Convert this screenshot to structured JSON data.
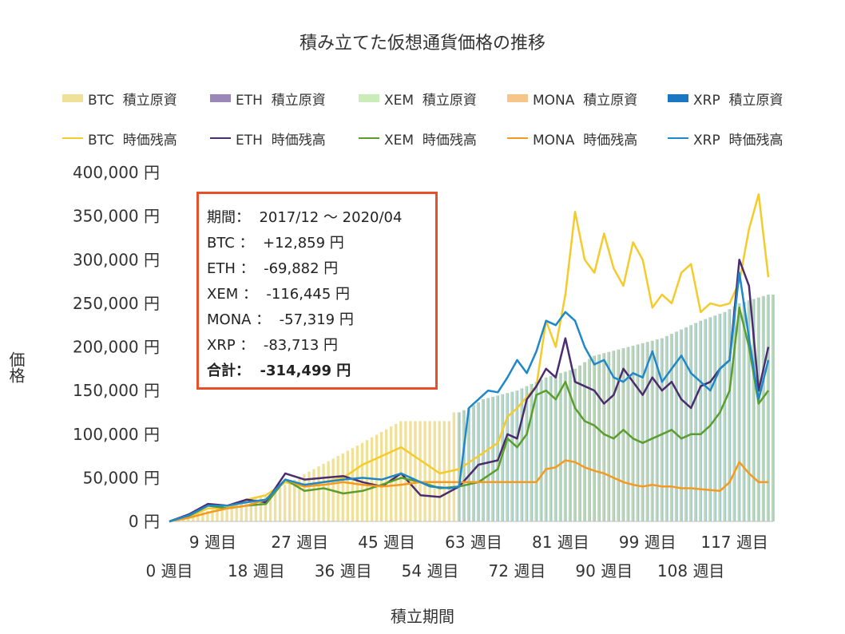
{
  "chart_data": {
    "type": "bar",
    "title": "積み立てた仮想通貨価格の推移",
    "xlabel": "積立期間",
    "ylabel": "価格",
    "ylim": [
      0,
      400000
    ],
    "yticks": [
      0,
      50000,
      100000,
      150000,
      200000,
      250000,
      300000,
      350000,
      400000
    ],
    "ytick_labels": [
      "0 円",
      "50,000 円",
      "100,000 円",
      "150,000 円",
      "200,000 円",
      "250,000 円",
      "300,000 円",
      "350,000 円",
      "400,000 円"
    ],
    "xlim": [
      0,
      125
    ],
    "xticks_upper": [
      9,
      27,
      45,
      63,
      81,
      99,
      117
    ],
    "xticks_upper_labels": [
      "9 週目",
      "27 週目",
      "45 週目",
      "63 週目",
      "81 週目",
      "99 週目",
      "117 週目"
    ],
    "xticks_lower": [
      0,
      18,
      36,
      54,
      72,
      90,
      108
    ],
    "xticks_lower_labels": [
      "0 週目",
      "18 週目",
      "36 週目",
      "54 週目",
      "72 週目",
      "90 週目",
      "108 週目"
    ],
    "grid": false,
    "legend_position": "top",
    "bar_series": [
      {
        "name": "BTC  積立原資",
        "color": "#efe09a",
        "values": [
          [
            0,
            0
          ],
          [
            20,
            30000
          ],
          [
            30,
            60000
          ],
          [
            40,
            90000
          ],
          [
            48,
            115000
          ],
          [
            58,
            115000
          ],
          [
            58,
            125000
          ],
          [
            60,
            125000
          ],
          [
            62,
            130000
          ],
          [
            65,
            140000
          ],
          [
            72,
            150000
          ],
          [
            78,
            165000
          ],
          [
            84,
            175000
          ],
          [
            88,
            190000
          ],
          [
            95,
            200000
          ],
          [
            102,
            210000
          ],
          [
            106,
            220000
          ],
          [
            110,
            230000
          ],
          [
            115,
            240000
          ],
          [
            118,
            250000
          ],
          [
            121,
            255000
          ],
          [
            124,
            260000
          ]
        ]
      },
      {
        "name": "ETH  積立原資",
        "color": "#9b88b8",
        "values": []
      },
      {
        "name": "XEM  積立原資",
        "color": "#c9ecb8",
        "values": []
      },
      {
        "name": "MONA  積立原資",
        "color": "#f5c58a",
        "values": []
      },
      {
        "name": "XRP  積立原資",
        "color": "#1a78c2",
        "values": []
      }
    ],
    "line_series": [
      {
        "name": "BTC  時価残高",
        "color": "#f5cb2c",
        "x": [
          0,
          4,
          8,
          12,
          16,
          20,
          24,
          28,
          32,
          36,
          40,
          44,
          48,
          52,
          56,
          60,
          64,
          68,
          70,
          72,
          76,
          78,
          80,
          82,
          84,
          86,
          88,
          90,
          92,
          94,
          96,
          98,
          100,
          102,
          104,
          106,
          108,
          110,
          112,
          114,
          116,
          118,
          120,
          122,
          124
        ],
        "y": [
          0,
          5000,
          15000,
          15000,
          25000,
          30000,
          45000,
          40000,
          45000,
          50000,
          65000,
          75000,
          85000,
          70000,
          55000,
          60000,
          75000,
          90000,
          120000,
          130000,
          155000,
          230000,
          200000,
          260000,
          355000,
          300000,
          285000,
          330000,
          290000,
          270000,
          320000,
          300000,
          245000,
          260000,
          250000,
          285000,
          295000,
          240000,
          250000,
          247000,
          250000,
          275000,
          335000,
          375000,
          280000
        ]
      },
      {
        "name": "ETH  時価残高",
        "color": "#4b2c6e",
        "x": [
          0,
          4,
          8,
          12,
          16,
          20,
          24,
          28,
          32,
          36,
          40,
          44,
          48,
          52,
          56,
          60,
          64,
          68,
          70,
          72,
          74,
          76,
          78,
          80,
          82,
          84,
          86,
          88,
          90,
          92,
          94,
          96,
          98,
          100,
          102,
          104,
          106,
          108,
          110,
          112,
          114,
          116,
          118,
          120,
          122,
          124
        ],
        "y": [
          0,
          8000,
          20000,
          18000,
          25000,
          22000,
          55000,
          48000,
          50000,
          52000,
          45000,
          40000,
          55000,
          30000,
          28000,
          40000,
          65000,
          70000,
          100000,
          95000,
          140000,
          155000,
          175000,
          165000,
          210000,
          160000,
          155000,
          150000,
          135000,
          145000,
          175000,
          160000,
          145000,
          165000,
          150000,
          160000,
          140000,
          130000,
          155000,
          160000,
          175000,
          185000,
          300000,
          270000,
          150000,
          200000
        ]
      },
      {
        "name": "XEM  時価残高",
        "color": "#5a9e2e",
        "x": [
          0,
          4,
          8,
          12,
          16,
          20,
          24,
          28,
          32,
          36,
          40,
          44,
          48,
          52,
          56,
          60,
          64,
          68,
          70,
          72,
          74,
          76,
          78,
          80,
          82,
          84,
          86,
          88,
          90,
          92,
          94,
          96,
          98,
          100,
          102,
          104,
          106,
          108,
          110,
          112,
          114,
          116,
          118,
          120,
          122,
          124
        ],
        "y": [
          0,
          6000,
          18000,
          15000,
          18000,
          20000,
          48000,
          35000,
          38000,
          32000,
          35000,
          42000,
          50000,
          45000,
          38000,
          40000,
          45000,
          60000,
          95000,
          85000,
          100000,
          145000,
          150000,
          140000,
          160000,
          130000,
          115000,
          110000,
          100000,
          95000,
          105000,
          95000,
          90000,
          95000,
          100000,
          105000,
          95000,
          100000,
          100000,
          110000,
          125000,
          150000,
          245000,
          200000,
          135000,
          150000
        ]
      },
      {
        "name": "MONA  時価残高",
        "color": "#f59a20",
        "x": [
          0,
          4,
          8,
          12,
          16,
          20,
          24,
          28,
          32,
          36,
          40,
          44,
          48,
          52,
          56,
          60,
          64,
          68,
          72,
          76,
          78,
          80,
          82,
          84,
          86,
          88,
          90,
          92,
          94,
          96,
          98,
          100,
          102,
          104,
          106,
          108,
          110,
          112,
          114,
          116,
          118,
          120,
          122,
          124
        ],
        "y": [
          0,
          4000,
          10000,
          15000,
          18000,
          25000,
          48000,
          40000,
          42000,
          45000,
          42000,
          40000,
          42000,
          45000,
          45000,
          45000,
          45000,
          45000,
          45000,
          45000,
          60000,
          62000,
          70000,
          68000,
          62000,
          58000,
          55000,
          50000,
          45000,
          42000,
          40000,
          42000,
          40000,
          40000,
          38000,
          38000,
          37000,
          36000,
          35000,
          45000,
          68000,
          55000,
          45000,
          45000
        ]
      },
      {
        "name": "XRP  時価残高",
        "color": "#1e88c8",
        "x": [
          0,
          4,
          8,
          12,
          16,
          20,
          24,
          28,
          32,
          36,
          40,
          44,
          48,
          52,
          54,
          58,
          60,
          62,
          64,
          66,
          68,
          70,
          72,
          74,
          76,
          78,
          80,
          82,
          84,
          86,
          88,
          90,
          92,
          94,
          96,
          98,
          100,
          102,
          104,
          106,
          108,
          110,
          112,
          114,
          116,
          118,
          120,
          122,
          124
        ],
        "y": [
          0,
          7000,
          18000,
          18000,
          22000,
          25000,
          48000,
          42000,
          45000,
          48000,
          50000,
          48000,
          55000,
          45000,
          40000,
          38000,
          40000,
          130000,
          140000,
          150000,
          148000,
          165000,
          185000,
          170000,
          195000,
          230000,
          225000,
          240000,
          230000,
          200000,
          180000,
          185000,
          165000,
          160000,
          170000,
          165000,
          195000,
          160000,
          175000,
          190000,
          170000,
          160000,
          150000,
          175000,
          185000,
          285000,
          210000,
          140000,
          185000
        ]
      }
    ],
    "annotation": {
      "lines": [
        "期間：  2017/12 〜 2020/04",
        "BTC ：  +12,859 円",
        "ETH ：  -69,882 円",
        "XEM ：  -116,445 円",
        "MONA ：  -57,319 円",
        "XRP ：  -83,713 円",
        "合計：  -314,499 円"
      ]
    }
  }
}
